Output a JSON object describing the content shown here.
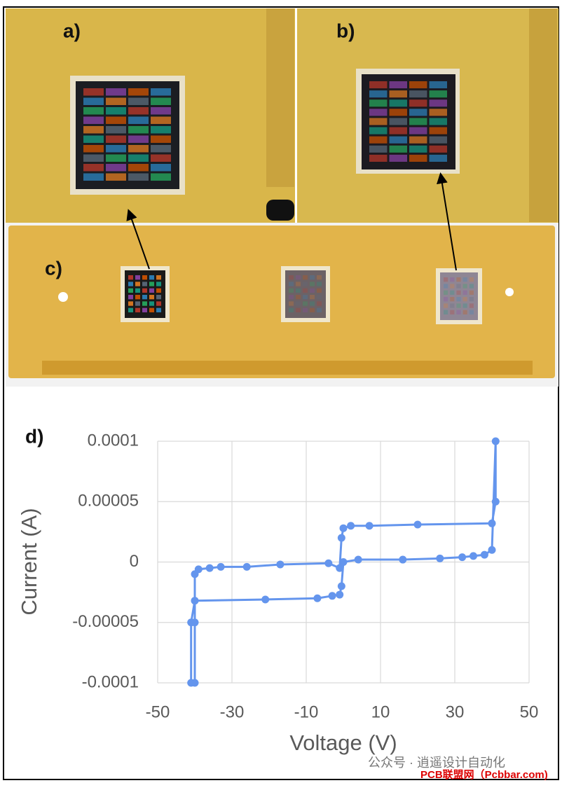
{
  "photo_labels": [
    "a)",
    "b)",
    "c)"
  ],
  "watermark": [
    "公众号 · 逍遥设计自动化",
    "PCB联盟网（Pcbbar.com)"
  ],
  "chart_data": {
    "type": "line",
    "panel_label": "d)",
    "xlabel": "Voltage (V)",
    "ylabel": "Current (A)",
    "x": [
      -40,
      -40,
      -40,
      -39,
      -36,
      -33,
      -26,
      -17,
      -4,
      -1,
      -0.5,
      0,
      2,
      7,
      20,
      40,
      41,
      41,
      40,
      38,
      35,
      32,
      26,
      16,
      4,
      0,
      -0.5,
      -1,
      -3,
      -7,
      -21,
      -40,
      -41,
      -41
    ],
    "series": [
      {
        "color": "#6495ed",
        "values": [
          -0.0001,
          -5e-05,
          -1e-05,
          -6e-06,
          -5e-06,
          -4e-06,
          -4e-06,
          -2e-06,
          -1e-06,
          -5e-06,
          2e-05,
          2.8e-05,
          3e-05,
          3e-05,
          3.1e-05,
          3.2e-05,
          5e-05,
          0.0001,
          1e-05,
          6e-06,
          5e-06,
          4e-06,
          3e-06,
          2e-06,
          2e-06,
          0,
          -2e-05,
          -2.7e-05,
          -2.8e-05,
          -3e-05,
          -3.1e-05,
          -3.2e-05,
          -5e-05,
          -0.0001
        ]
      }
    ],
    "xlim": [
      -50,
      50
    ],
    "xticks": [
      -50,
      -30,
      -10,
      10,
      30,
      50
    ],
    "ylim": [
      -0.0001,
      0.0001
    ],
    "yticks": [
      -0.0001,
      -5e-05,
      0,
      5e-05,
      0.0001
    ],
    "grid": true
  }
}
